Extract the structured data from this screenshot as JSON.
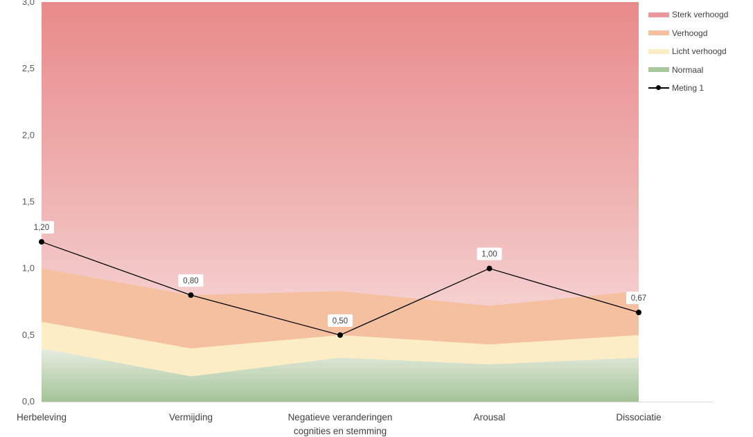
{
  "chart_data": {
    "type": "area",
    "categories": [
      "Herbeleving",
      "Vermijding",
      "Negatieve veranderingen\ncognities en stemming",
      "Arousal",
      "Dissociatie"
    ],
    "ylim": [
      0,
      3
    ],
    "yticks": [
      "0,0",
      "0,5",
      "1,0",
      "1,5",
      "2,0",
      "2,5",
      "3,0"
    ],
    "series": [
      {
        "name": "Sterk verhoogd",
        "kind": "band",
        "color": "#e98a8a",
        "upper": [
          3,
          3,
          3,
          3,
          3
        ]
      },
      {
        "name": "Verhoogd",
        "kind": "band",
        "color": "#f4c09f",
        "upper": [
          1.0,
          0.8,
          0.83,
          0.72,
          0.83
        ]
      },
      {
        "name": "Licht verhoogd",
        "kind": "band",
        "color": "#fdedc7",
        "upper": [
          0.6,
          0.4,
          0.5,
          0.43,
          0.5
        ]
      },
      {
        "name": "Normaal",
        "kind": "band",
        "color": "#a9c79c",
        "upper": [
          0.4,
          0.19,
          0.33,
          0.28,
          0.33
        ]
      },
      {
        "name": "Meting 1",
        "kind": "line",
        "color": "#000000",
        "values": [
          1.2,
          0.8,
          0.5,
          1.0,
          0.67
        ],
        "labels": [
          "1,20",
          "0,80",
          "0,50",
          "1,00",
          "0,67"
        ]
      }
    ],
    "legend_position": "right",
    "grid": false
  }
}
